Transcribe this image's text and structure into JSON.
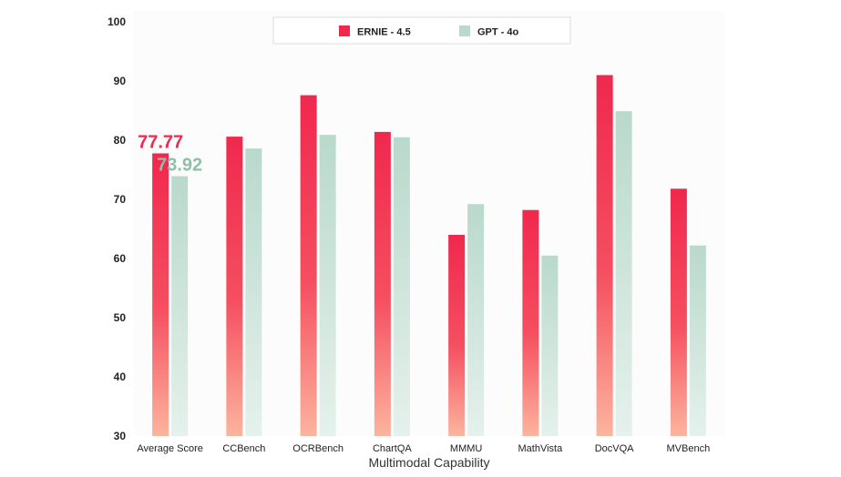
{
  "chart_data": {
    "type": "bar",
    "title": "",
    "xlabel": "Multimodal Capability",
    "ylabel": "",
    "ylim": [
      30,
      100
    ],
    "yticks": [
      "30",
      "40",
      "50",
      "60",
      "70",
      "80",
      "90",
      "100"
    ],
    "grid": false,
    "legend_position": "top-center",
    "categories": [
      "Average Score",
      "CCBench",
      "OCRBench",
      "ChartQA",
      "MMMU",
      "MathVista",
      "DocVQA",
      "MVBench"
    ],
    "series": [
      {
        "name": "ERNIE - 4.5",
        "color": "#f0284e",
        "values": [
          77.77,
          80.6,
          87.6,
          81.4,
          64.0,
          68.2,
          91.0,
          71.8
        ]
      },
      {
        "name": "GPT - 4o",
        "color": "#b9d9cb",
        "values": [
          73.92,
          78.6,
          80.9,
          80.5,
          69.2,
          60.5,
          84.9,
          62.2
        ]
      }
    ],
    "annotations": [
      {
        "series": 0,
        "category": 0,
        "text": "77.77",
        "color": "#f0284e"
      },
      {
        "series": 1,
        "category": 0,
        "text": "73.92",
        "color": "#8fbfa8"
      }
    ]
  }
}
